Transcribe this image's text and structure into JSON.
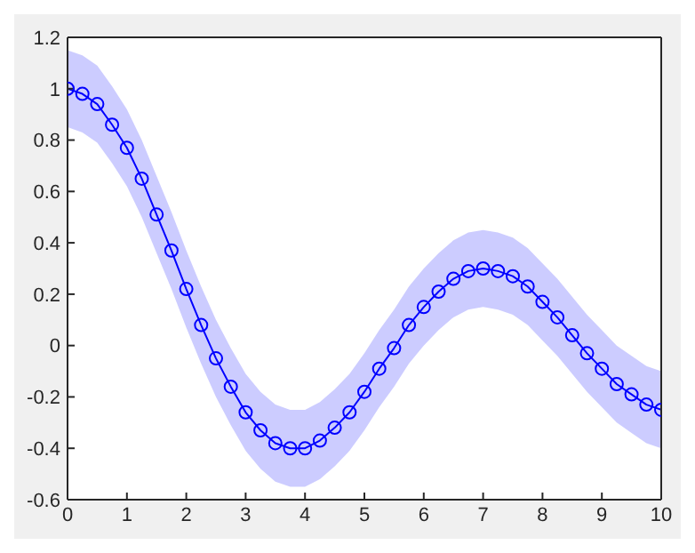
{
  "chart_data": {
    "type": "line",
    "x": [
      0,
      0.25,
      0.5,
      0.75,
      1,
      1.25,
      1.5,
      1.75,
      2,
      2.25,
      2.5,
      2.75,
      3,
      3.25,
      3.5,
      3.75,
      4,
      4.25,
      4.5,
      4.75,
      5,
      5.25,
      5.5,
      5.75,
      6,
      6.25,
      6.5,
      6.75,
      7,
      7.25,
      7.5,
      7.75,
      8,
      8.25,
      8.5,
      8.75,
      9,
      9.25,
      9.5,
      9.75,
      10
    ],
    "series": [
      {
        "color": "#0000ff",
        "values": [
          1.0,
          0.98,
          0.94,
          0.86,
          0.77,
          0.65,
          0.51,
          0.37,
          0.22,
          0.08,
          -0.05,
          -0.16,
          -0.26,
          -0.33,
          -0.38,
          -0.4,
          -0.4,
          -0.37,
          -0.32,
          -0.26,
          -0.18,
          -0.09,
          -0.01,
          0.08,
          0.15,
          0.21,
          0.26,
          0.29,
          0.3,
          0.29,
          0.27,
          0.23,
          0.17,
          0.11,
          0.04,
          -0.03,
          -0.09,
          -0.15,
          -0.19,
          -0.23,
          -0.25
        ],
        "lower": [
          0.85,
          0.83,
          0.79,
          0.71,
          0.62,
          0.5,
          0.36,
          0.22,
          0.07,
          -0.07,
          -0.2,
          -0.31,
          -0.41,
          -0.48,
          -0.53,
          -0.55,
          -0.55,
          -0.52,
          -0.47,
          -0.41,
          -0.33,
          -0.24,
          -0.16,
          -0.07,
          0.0,
          0.06,
          0.11,
          0.14,
          0.15,
          0.14,
          0.12,
          0.08,
          0.02,
          -0.04,
          -0.11,
          -0.18,
          -0.24,
          -0.3,
          -0.34,
          -0.38,
          -0.4
        ],
        "upper": [
          1.15,
          1.13,
          1.09,
          1.01,
          0.92,
          0.8,
          0.66,
          0.52,
          0.37,
          0.23,
          0.1,
          -0.01,
          -0.11,
          -0.18,
          -0.23,
          -0.25,
          -0.25,
          -0.22,
          -0.17,
          -0.11,
          -0.03,
          0.06,
          0.14,
          0.23,
          0.3,
          0.36,
          0.41,
          0.44,
          0.45,
          0.44,
          0.42,
          0.38,
          0.32,
          0.26,
          0.19,
          0.12,
          0.06,
          0.0,
          -0.04,
          -0.08,
          -0.1
        ]
      }
    ],
    "xlim": [
      0,
      10
    ],
    "xticks": [
      0,
      1,
      2,
      3,
      4,
      5,
      6,
      7,
      8,
      9,
      10
    ],
    "ylim": [
      -0.6,
      1.2
    ],
    "yticks": [
      -0.6,
      -0.4,
      -0.2,
      0,
      0.2,
      0.4,
      0.6,
      0.8,
      1,
      1.2
    ],
    "marker": "circle",
    "line_style": "solid"
  }
}
